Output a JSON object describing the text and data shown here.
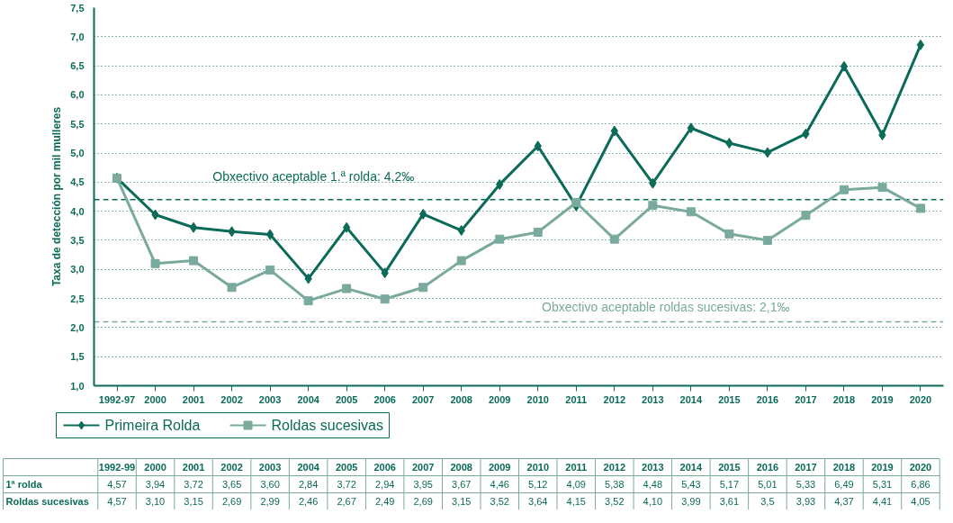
{
  "chart_data": {
    "type": "line",
    "ylabel": "Taxa de detección por mil mulleres",
    "categories": [
      "1992-97",
      "2000",
      "2001",
      "2002",
      "2003",
      "2004",
      "2005",
      "2006",
      "2007",
      "2008",
      "2009",
      "2010",
      "2011",
      "2012",
      "2013",
      "2014",
      "2015",
      "2016",
      "2017",
      "2018",
      "2019",
      "2020"
    ],
    "series": [
      {
        "name": "Primeira Rolda",
        "color": "#0b6b58",
        "marker": "diamond",
        "values": [
          4.57,
          3.94,
          3.72,
          3.65,
          3.6,
          2.84,
          3.72,
          2.94,
          3.95,
          3.67,
          4.46,
          5.12,
          4.09,
          5.38,
          4.48,
          5.43,
          5.17,
          5.01,
          5.33,
          6.49,
          5.31,
          6.86
        ],
        "value_labels": [
          "4,57",
          "3,94",
          "3,72",
          "3,65",
          "3,60",
          "2,84",
          "3,72",
          "2,94",
          "3,95",
          "3,67",
          "4,46",
          "5,12",
          "4,09",
          "5,38",
          "4,48",
          "5,43",
          "5,17",
          "5,01",
          "5,33",
          "6,49",
          "5,31",
          "6,86"
        ]
      },
      {
        "name": "Roldas sucesivas",
        "color": "#7aaa9e",
        "marker": "square",
        "values": [
          4.57,
          3.1,
          3.15,
          2.69,
          2.99,
          2.46,
          2.67,
          2.49,
          2.69,
          3.15,
          3.52,
          3.64,
          4.15,
          3.52,
          4.1,
          3.99,
          3.61,
          3.5,
          3.93,
          4.37,
          4.41,
          4.05
        ],
        "value_labels": [
          "4,57",
          "3,10",
          "3,15",
          "2,69",
          "2,99",
          "2,46",
          "2,67",
          "2,49",
          "2,69",
          "3,15",
          "3,52",
          "3,64",
          "4,15",
          "3,52",
          "4,10",
          "3,99",
          "3,61",
          "3,5",
          "3,93",
          "4,37",
          "4,41",
          "4,05"
        ]
      }
    ],
    "ylim": [
      1.0,
      7.5
    ],
    "yticks": [
      {
        "value": 1.0,
        "label": "1,0"
      },
      {
        "value": 1.5,
        "label": "1,5"
      },
      {
        "value": 2.0,
        "label": "2,0"
      },
      {
        "value": 2.5,
        "label": "2,5"
      },
      {
        "value": 3.0,
        "label": "3,0"
      },
      {
        "value": 3.5,
        "label": "3,5"
      },
      {
        "value": 4.0,
        "label": "4,0"
      },
      {
        "value": 4.5,
        "label": "4,5"
      },
      {
        "value": 5.0,
        "label": "5,0"
      },
      {
        "value": 5.5,
        "label": "5,5"
      },
      {
        "value": 6.0,
        "label": "6,0"
      },
      {
        "value": 6.5,
        "label": "6,5"
      },
      {
        "value": 7.0,
        "label": "7,0"
      },
      {
        "value": 7.5,
        "label": "7,5"
      }
    ],
    "ref_lines": [
      {
        "axis": "y",
        "value": 4.2,
        "label": "Obxectivo aceptable 1.ª rolda: 4,2‰",
        "color": "#0b6b58",
        "line_style": "dashed"
      },
      {
        "axis": "y",
        "value": 2.1,
        "label": "Obxectivo aceptable roldas sucesivas: 2,1‰",
        "color": "#7aaa9e",
        "line_style": "dashed"
      }
    ],
    "annotations": [
      "1992-99",
      "1ª rolda",
      "Roldas sucesivas"
    ],
    "grid": "y",
    "legend": "bottom",
    "line_style": "solid"
  }
}
